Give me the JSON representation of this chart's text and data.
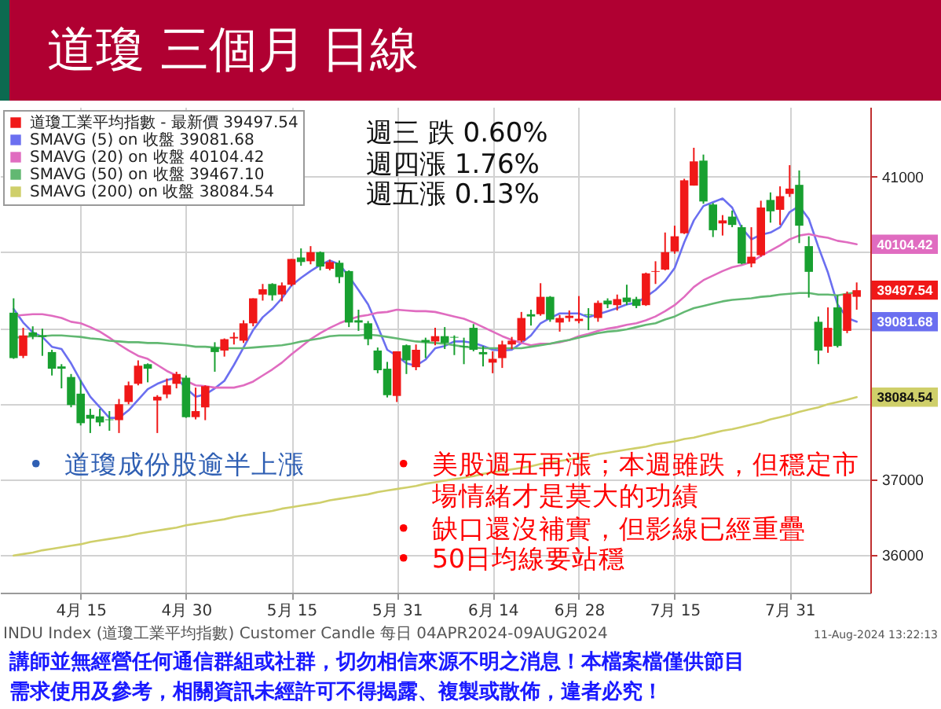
{
  "chart_data": {
    "type": "candlestick",
    "title": "道瓊 三個月 日線",
    "categories": [
      null,
      null,
      null,
      null,
      null,
      null,
      null,
      "4月 15",
      null,
      null,
      null,
      null,
      null,
      null,
      null,
      null,
      null,
      null,
      "4月 30",
      null,
      null,
      null,
      null,
      null,
      null,
      null,
      null,
      null,
      null,
      "5月 15",
      null,
      null,
      null,
      null,
      null,
      null,
      null,
      null,
      null,
      null,
      "5月 31",
      null,
      null,
      null,
      null,
      null,
      null,
      null,
      null,
      null,
      "6月 14",
      null,
      null,
      null,
      null,
      null,
      null,
      null,
      null,
      "6月 28",
      null,
      null,
      null,
      null,
      null,
      null,
      null,
      null,
      null,
      "7月 15",
      null,
      null,
      null,
      null,
      null,
      null,
      null,
      null,
      null,
      null,
      null,
      "7月 31",
      null,
      null,
      null,
      null,
      null,
      null,
      null
    ],
    "series": [
      {
        "name": "道瓊工業平均指數 - 最新價 39497.54",
        "color": "#f01818",
        "ohlc": [
          [
            39200,
            39390,
            38590,
            38600
          ],
          [
            38630,
            39000,
            38600,
            38900
          ],
          [
            38940,
            39020,
            38850,
            38890
          ],
          [
            38900,
            38990,
            38630,
            38880
          ],
          [
            38680,
            38710,
            38370,
            38460
          ],
          [
            38490,
            38520,
            38200,
            38460
          ],
          [
            38350,
            38390,
            37950,
            37980
          ],
          [
            38130,
            38310,
            37710,
            37740
          ],
          [
            37850,
            37930,
            37610,
            37800
          ],
          [
            37830,
            37930,
            37700,
            37750
          ],
          [
            37790,
            37900,
            37640,
            37780
          ],
          [
            37780,
            38060,
            37610,
            37990
          ],
          [
            38020,
            38290,
            37990,
            38240
          ],
          [
            38260,
            38570,
            38240,
            38500
          ],
          [
            38520,
            38530,
            38280,
            38460
          ],
          [
            38040,
            38110,
            37610,
            38090
          ],
          [
            38120,
            38330,
            38070,
            38240
          ],
          [
            38260,
            38420,
            38200,
            38390
          ],
          [
            38340,
            38370,
            37810,
            37820
          ],
          [
            37820,
            38210,
            37790,
            37900
          ],
          [
            37950,
            38240,
            37780,
            38230
          ],
          [
            38740,
            38810,
            38420,
            38680
          ],
          [
            38700,
            38860,
            38620,
            38850
          ],
          [
            38860,
            38940,
            38780,
            38880
          ],
          [
            38830,
            39100,
            38800,
            39060
          ],
          [
            39060,
            39390,
            39020,
            39390
          ],
          [
            39440,
            39580,
            39360,
            39510
          ],
          [
            39580,
            39590,
            39360,
            39430
          ],
          [
            39440,
            39600,
            39350,
            39560
          ],
          [
            39570,
            39910,
            39550,
            39910
          ],
          [
            39930,
            40050,
            39820,
            39870
          ],
          [
            39880,
            40080,
            39840,
            40000
          ],
          [
            40000,
            40010,
            39760,
            39810
          ],
          [
            39780,
            39900,
            39760,
            39870
          ],
          [
            39860,
            39890,
            39590,
            39670
          ],
          [
            39750,
            39760,
            39010,
            39070
          ],
          [
            39100,
            39240,
            38960,
            39070
          ],
          [
            39060,
            39090,
            38770,
            38850
          ],
          [
            38700,
            38740,
            38400,
            38440
          ],
          [
            38460,
            38550,
            38080,
            38110
          ],
          [
            38100,
            38690,
            38020,
            38690
          ],
          [
            38770,
            38780,
            38390,
            38570
          ],
          [
            38480,
            38780,
            38440,
            38710
          ],
          [
            38840,
            38870,
            38600,
            38810
          ],
          [
            38820,
            39000,
            38770,
            38890
          ],
          [
            38890,
            39010,
            38720,
            38800
          ],
          [
            38880,
            38900,
            38640,
            38870
          ],
          [
            38760,
            38870,
            38520,
            38750
          ],
          [
            39000,
            39050,
            38690,
            38710
          ],
          [
            38680,
            38760,
            38490,
            38650
          ],
          [
            38540,
            38690,
            38400,
            38590
          ],
          [
            38600,
            38830,
            38470,
            38780
          ],
          [
            38780,
            38880,
            38720,
            38830
          ],
          [
            38830,
            39210,
            38810,
            39130
          ],
          [
            39180,
            39240,
            39030,
            39150
          ],
          [
            39180,
            39590,
            39160,
            39410
          ],
          [
            39410,
            39420,
            39080,
            39110
          ],
          [
            39070,
            39170,
            38950,
            39130
          ],
          [
            39130,
            39230,
            39080,
            39160
          ],
          [
            39090,
            39420,
            39060,
            39120
          ],
          [
            39180,
            39260,
            38970,
            39170
          ],
          [
            39130,
            39360,
            39080,
            39330
          ],
          [
            39360,
            39390,
            39260,
            39310
          ],
          [
            39300,
            39440,
            39230,
            39380
          ],
          [
            39400,
            39570,
            39300,
            39340
          ],
          [
            39380,
            39410,
            39260,
            39290
          ],
          [
            39300,
            39730,
            39290,
            39720
          ],
          [
            39740,
            39880,
            39580,
            39750
          ],
          [
            39770,
            40260,
            39760,
            40000
          ],
          [
            40010,
            40350,
            39980,
            40210
          ],
          [
            40250,
            40970,
            40240,
            40950
          ],
          [
            40880,
            41380,
            40880,
            41200
          ],
          [
            41210,
            41290,
            40640,
            40670
          ],
          [
            40630,
            40650,
            40200,
            40290
          ],
          [
            40380,
            40490,
            40220,
            40420
          ],
          [
            40470,
            40550,
            40330,
            40360
          ],
          [
            40330,
            40360,
            39840,
            39850
          ],
          [
            39850,
            40330,
            39800,
            39940
          ],
          [
            39960,
            40680,
            39940,
            40590
          ],
          [
            40690,
            40790,
            40390,
            40540
          ],
          [
            40560,
            40870,
            40360,
            40740
          ],
          [
            40770,
            41150,
            40730,
            40840
          ],
          [
            40890,
            41080,
            40120,
            40350
          ],
          [
            40080,
            40210,
            39400,
            39740
          ],
          [
            39080,
            39150,
            38520,
            38700
          ],
          [
            38750,
            39270,
            38670,
            39000
          ],
          [
            39270,
            39430,
            38740,
            38760
          ],
          [
            38960,
            39480,
            38930,
            39450
          ],
          [
            39410,
            39600,
            39240,
            39497.54
          ]
        ],
        "colors": [
          "#18a030",
          "#f01818",
          "#18a030",
          "#18a030",
          "#18a030",
          "#18a030",
          "#18a030",
          "#18a030",
          "#18a030",
          "#18a030",
          "#18a030",
          "#f01818",
          "#f01818",
          "#f01818",
          "#18a030",
          "#f01818",
          "#f01818",
          "#f01818",
          "#18a030",
          "#f01818",
          "#f01818",
          "#18a030",
          "#f01818",
          "#f01818",
          "#f01818",
          "#f01818",
          "#f01818",
          "#18a030",
          "#f01818",
          "#f01818",
          "#18a030",
          "#f01818",
          "#18a030",
          "#f01818",
          "#18a030",
          "#18a030",
          "#18a030",
          "#18a030",
          "#18a030",
          "#18a030",
          "#f01818",
          "#18a030",
          "#f01818",
          "#18a030",
          "#f01818",
          "#18a030",
          "#18a030",
          "#18a030",
          "#18a030",
          "#18a030",
          "#f01818",
          "#f01818",
          "#f01818",
          "#f01818",
          "#18a030",
          "#f01818",
          "#18a030",
          "#f01818",
          "#f01818",
          "#f01818",
          "#18a030",
          "#f01818",
          "#18a030",
          "#f01818",
          "#18a030",
          "#18a030",
          "#f01818",
          "#f01818",
          "#f01818",
          "#f01818",
          "#f01818",
          "#f01818",
          "#18a030",
          "#18a030",
          "#f01818",
          "#18a030",
          "#18a030",
          "#f01818",
          "#f01818",
          "#18a030",
          "#f01818",
          "#f01818",
          "#18a030",
          "#18a030",
          "#18a030",
          "#f01818",
          "#18a030",
          "#f01818",
          "#f01818"
        ],
        "value_labels": [
          null,
          null,
          null,
          null,
          null,
          null,
          null,
          null,
          null,
          null,
          null,
          null,
          null,
          null,
          null,
          null,
          null,
          null,
          null,
          null,
          null,
          null,
          null,
          null,
          null,
          null,
          null,
          null,
          null,
          null,
          null,
          null,
          null,
          null,
          null,
          null,
          null,
          null,
          null,
          null,
          null,
          null,
          null,
          null,
          null,
          null,
          null,
          null,
          null,
          null,
          null,
          null,
          null,
          null,
          null,
          null,
          null,
          null,
          null,
          null,
          null,
          null,
          null,
          null,
          null,
          null,
          null,
          null,
          null,
          null,
          null,
          null,
          null,
          null,
          null,
          null,
          null,
          null,
          null,
          null,
          null,
          null,
          null,
          null,
          null,
          null,
          null,
          null,
          "39497.54"
        ]
      },
      {
        "name": "SMAVG (5) on 收盤 39081.68",
        "type": "line",
        "color": "#6b6ff0",
        "values": [
          39250,
          39070,
          38940,
          38880,
          38750,
          38720,
          38530,
          38300,
          38090,
          37950,
          37810,
          37810,
          37910,
          38050,
          38190,
          38260,
          38310,
          38340,
          38200,
          38090,
          38120,
          38200,
          38300,
          38510,
          38740,
          38970,
          39140,
          39250,
          39390,
          39560,
          39660,
          39750,
          39830,
          39890,
          39840,
          39680,
          39500,
          39310,
          39020,
          38710,
          38630,
          38530,
          38500,
          38580,
          38730,
          38760,
          38820,
          38820,
          38800,
          38760,
          38710,
          38700,
          38710,
          38800,
          38900,
          39060,
          39130,
          39190,
          39190,
          39190,
          39140,
          39180,
          39220,
          39260,
          39310,
          39330,
          39410,
          39500,
          39620,
          39790,
          40130,
          40420,
          40610,
          40660,
          40710,
          40590,
          40320,
          40170,
          40230,
          40260,
          40330,
          40530,
          40610,
          40440,
          40070,
          39730,
          39310,
          39130,
          39081.68
        ],
        "value_labels": [
          null,
          null,
          null,
          null,
          null,
          null,
          null,
          null,
          null,
          null,
          null,
          null,
          null,
          null,
          null,
          null,
          null,
          null,
          null,
          null,
          null,
          null,
          null,
          null,
          null,
          null,
          null,
          null,
          null,
          null,
          null,
          null,
          null,
          null,
          null,
          null,
          null,
          null,
          null,
          null,
          null,
          null,
          null,
          null,
          null,
          null,
          null,
          null,
          null,
          null,
          null,
          null,
          null,
          null,
          null,
          null,
          null,
          null,
          null,
          null,
          null,
          null,
          null,
          null,
          null,
          null,
          null,
          null,
          null,
          null,
          null,
          null,
          null,
          null,
          null,
          null,
          null,
          null,
          null,
          null,
          null,
          null,
          null,
          null,
          null,
          null,
          null,
          null,
          "39081.68"
        ]
      },
      {
        "name": "SMAVG (20) on 收盤 40104.42",
        "type": "line",
        "color": "#e06cc0",
        "values": [
          39160,
          39170,
          39180,
          39180,
          39160,
          39130,
          39080,
          39060,
          39010,
          38950,
          38870,
          38780,
          38700,
          38630,
          38590,
          38510,
          38430,
          38370,
          38300,
          38240,
          38230,
          38210,
          38210,
          38210,
          38240,
          38290,
          38370,
          38450,
          38540,
          38650,
          38750,
          38850,
          38930,
          39000,
          39060,
          39110,
          39150,
          39170,
          39200,
          39210,
          39240,
          39230,
          39220,
          39220,
          39210,
          39180,
          39150,
          39120,
          39070,
          39010,
          38950,
          38890,
          38840,
          38800,
          38770,
          38790,
          38790,
          38810,
          38840,
          38890,
          38920,
          38960,
          38990,
          39010,
          39040,
          39060,
          39100,
          39150,
          39220,
          39300,
          39410,
          39540,
          39630,
          39690,
          39750,
          39800,
          39830,
          39870,
          39950,
          40020,
          40090,
          40170,
          40220,
          40240,
          40210,
          40190,
          40150,
          40130,
          40104.42
        ],
        "value_labels": [
          null,
          null,
          null,
          null,
          null,
          null,
          null,
          null,
          null,
          null,
          null,
          null,
          null,
          null,
          null,
          null,
          null,
          null,
          null,
          null,
          null,
          null,
          null,
          null,
          null,
          null,
          null,
          null,
          null,
          null,
          null,
          null,
          null,
          null,
          null,
          null,
          null,
          null,
          null,
          null,
          null,
          null,
          null,
          null,
          null,
          null,
          null,
          null,
          null,
          null,
          null,
          null,
          null,
          null,
          null,
          null,
          null,
          null,
          null,
          null,
          null,
          null,
          null,
          null,
          null,
          null,
          null,
          null,
          null,
          null,
          null,
          null,
          null,
          null,
          null,
          null,
          null,
          null,
          null,
          null,
          null,
          null,
          null,
          null,
          null,
          null,
          null,
          null,
          "40104.42"
        ]
      },
      {
        "name": "SMAVG (50) on 收盤 39467.10",
        "type": "line",
        "color": "#62b872",
        "values": [
          38870,
          38880,
          38890,
          38890,
          38900,
          38900,
          38890,
          38880,
          38860,
          38850,
          38830,
          38820,
          38810,
          38810,
          38800,
          38800,
          38790,
          38780,
          38770,
          38750,
          38750,
          38740,
          38730,
          38730,
          38730,
          38740,
          38750,
          38760,
          38770,
          38790,
          38820,
          38840,
          38860,
          38890,
          38900,
          38900,
          38900,
          38910,
          38900,
          38880,
          38860,
          38840,
          38820,
          38810,
          38800,
          38790,
          38770,
          38750,
          38740,
          38730,
          38730,
          38730,
          38730,
          38730,
          38750,
          38770,
          38790,
          38820,
          38840,
          38870,
          38900,
          38930,
          38950,
          38960,
          38980,
          39010,
          39040,
          39060,
          39110,
          39150,
          39210,
          39260,
          39290,
          39320,
          39350,
          39370,
          39380,
          39390,
          39410,
          39420,
          39440,
          39450,
          39460,
          39460,
          39440,
          39440,
          39430,
          39450,
          39470
        ]
      },
      {
        "name": "SMAVG (200) on 收盤 38084.54",
        "type": "line",
        "color": "#cfcf6a",
        "values": [
          35990,
          36010,
          36030,
          36060,
          36080,
          36100,
          36120,
          36140,
          36170,
          36190,
          36210,
          36230,
          36250,
          36280,
          36300,
          36320,
          36340,
          36360,
          36390,
          36410,
          36430,
          36450,
          36470,
          36500,
          36520,
          36540,
          36560,
          36580,
          36610,
          36630,
          36650,
          36670,
          36690,
          36720,
          36740,
          36760,
          36780,
          36800,
          36830,
          36850,
          36870,
          36890,
          36910,
          36940,
          36960,
          36980,
          37000,
          37020,
          37040,
          37070,
          37090,
          37110,
          37130,
          37150,
          37170,
          37200,
          37220,
          37240,
          37260,
          37280,
          37300,
          37330,
          37350,
          37370,
          37390,
          37410,
          37430,
          37460,
          37480,
          37500,
          37530,
          37550,
          37580,
          37610,
          37640,
          37660,
          37690,
          37720,
          37750,
          37790,
          37820,
          37850,
          37890,
          37920,
          37950,
          37990,
          38020,
          38050,
          38084.54
        ],
        "value_labels": [
          null,
          null,
          null,
          null,
          null,
          null,
          null,
          null,
          null,
          null,
          null,
          null,
          null,
          null,
          null,
          null,
          null,
          null,
          null,
          null,
          null,
          null,
          null,
          null,
          null,
          null,
          null,
          null,
          null,
          null,
          null,
          null,
          null,
          null,
          null,
          null,
          null,
          null,
          null,
          null,
          null,
          null,
          null,
          null,
          null,
          null,
          null,
          null,
          null,
          null,
          null,
          null,
          null,
          null,
          null,
          null,
          null,
          null,
          null,
          null,
          null,
          null,
          null,
          null,
          null,
          null,
          null,
          null,
          null,
          null,
          null,
          null,
          null,
          null,
          null,
          null,
          null,
          null,
          null,
          null,
          null,
          null,
          null,
          null,
          null,
          null,
          null,
          null,
          "38084.54"
        ]
      }
    ],
    "ylim": [
      35500,
      41920
    ],
    "yticks": [
      36000,
      37000,
      {
        "value": 38000,
        "label": null
      },
      {
        "value": 39000,
        "label": null
      },
      {
        "value": 40000,
        "label": null
      },
      41000
    ],
    "grid": true,
    "legend": "top left",
    "annotations": [
      "週三 跌 0.60%",
      "週四漲 1.76%",
      "週五漲 0.13%",
      "• 道瓊成份股逾半上漲",
      "• 美股週五再漲；本週雖跌，但穩定市場情緒才是莫大的功績",
      "• 缺口還沒補實，但影線已經重疊",
      "• 50日均線要站穩",
      "INDU Index (道瓊工業平均指數) Customer Candle 每日 04APR2024-09AUG2024",
      "11-Aug-2024 13:22:13",
      "講師並無經營任何通信群組或社群，切勿相信來源不明之消息！本檔案檔僅供節目需求使用及參考，相關資訊未經許可不得揭露、複製或散佈，違者必究！"
    ]
  }
}
